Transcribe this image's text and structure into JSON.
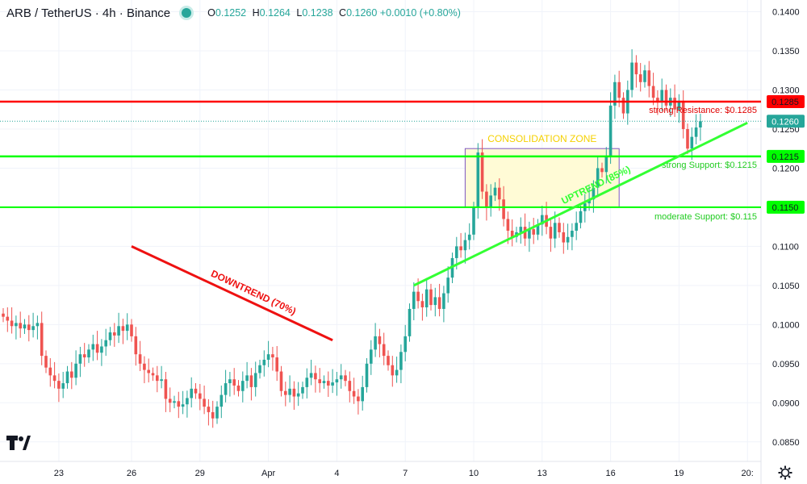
{
  "header": {
    "symbol": "ARB / TetherUS · 4h · Binance",
    "ohlc": [
      {
        "k": "O",
        "v": "0.1252"
      },
      {
        "k": "H",
        "v": "0.1264"
      },
      {
        "k": "L",
        "v": "0.1238"
      },
      {
        "k": "C",
        "v": "0.1260"
      },
      {
        "k": "",
        "v": "+0.0010 (+0.80%)"
      }
    ]
  },
  "colors": {
    "up": "#26a69a",
    "down": "#ef5350",
    "resistance": "#ff0000",
    "support": "#00ff00",
    "uptrend": "#33ff33",
    "downtrend": "#ee1111",
    "zone_fill": "#fffbd6",
    "zone_border": "#7e57c2",
    "price_tag": "#26a69a"
  },
  "chart_data": {
    "type": "candlestick",
    "title": "",
    "xlabel": "",
    "ylabel": "",
    "ylim": [
      0.0825,
      0.1415
    ],
    "y_ticks": [
      "0.0850",
      "0.0900",
      "0.0950",
      "0.1000",
      "0.1050",
      "0.1100",
      "0.1150",
      "0.1200",
      "0.1250",
      "0.1300",
      "0.1350",
      "0.1400"
    ],
    "y_tick_values": [
      0.085,
      0.09,
      0.095,
      0.1,
      0.105,
      0.11,
      0.115,
      0.12,
      0.125,
      0.13,
      0.135,
      0.14
    ],
    "x_ticks": [
      "23",
      "26",
      "29",
      "Apr",
      "4",
      "7",
      "10",
      "13",
      "16",
      "19",
      "20"
    ],
    "x_tick_index": [
      13,
      30,
      46,
      62,
      78,
      94,
      110,
      126,
      142,
      158,
      174
    ],
    "grid": true,
    "closes": [
      0.101,
      0.1005,
      0.0998,
      0.1002,
      0.0995,
      0.1,
      0.0993,
      0.0998,
      0.1002,
      0.096,
      0.0945,
      0.0935,
      0.0928,
      0.0918,
      0.0925,
      0.094,
      0.0932,
      0.095,
      0.0962,
      0.0958,
      0.0968,
      0.0975,
      0.0964,
      0.0972,
      0.098,
      0.099,
      0.0986,
      0.0998,
      0.0992,
      0.1,
      0.0985,
      0.0962,
      0.095,
      0.0942,
      0.0938,
      0.0935,
      0.0928,
      0.093,
      0.0905,
      0.09,
      0.0902,
      0.0895,
      0.0898,
      0.0906,
      0.0918,
      0.0912,
      0.0905,
      0.0895,
      0.0888,
      0.088,
      0.0895,
      0.091,
      0.0925,
      0.093,
      0.0922,
      0.0915,
      0.0928,
      0.0935,
      0.092,
      0.0938,
      0.0948,
      0.0955,
      0.0962,
      0.0958,
      0.094,
      0.0915,
      0.091,
      0.0918,
      0.0908,
      0.0912,
      0.092,
      0.0932,
      0.0938,
      0.093,
      0.0925,
      0.0928,
      0.0922,
      0.0926,
      0.093,
      0.0935,
      0.0928,
      0.0915,
      0.0908,
      0.0902,
      0.092,
      0.095,
      0.0968,
      0.0985,
      0.0975,
      0.096,
      0.0948,
      0.0935,
      0.0942,
      0.0965,
      0.0985,
      0.102,
      0.1042,
      0.103,
      0.1022,
      0.1045,
      0.1025,
      0.1035,
      0.102,
      0.104,
      0.106,
      0.1085,
      0.11,
      0.1095,
      0.1108,
      0.1115,
      0.115,
      0.122,
      0.117,
      0.115,
      0.1165,
      0.1175,
      0.116,
      0.1135,
      0.112,
      0.1112,
      0.1118,
      0.1125,
      0.111,
      0.1122,
      0.1115,
      0.1128,
      0.114,
      0.1125,
      0.111,
      0.113,
      0.1118,
      0.1105,
      0.1112,
      0.112,
      0.113,
      0.1145,
      0.1155,
      0.116,
      0.1175,
      0.12,
      0.1195,
      0.1215,
      0.128,
      0.131,
      0.129,
      0.127,
      0.13,
      0.1335,
      0.132,
      0.131,
      0.1325,
      0.1305,
      0.129,
      0.1285,
      0.13,
      0.128,
      0.129,
      0.1275,
      0.1285,
      0.125,
      0.1225,
      0.124,
      0.1252,
      0.126
    ],
    "lines": [
      {
        "name": "resistance",
        "price": 0.1285,
        "label": "strong Resistance: $0.1285",
        "tag": "0.1285"
      },
      {
        "name": "current",
        "price": 0.126,
        "tag": "0.1260"
      },
      {
        "name": "strong-support",
        "price": 0.1215,
        "label": "strong Support: $0.1215",
        "tag": "0.1215"
      },
      {
        "name": "moderate-support",
        "price": 0.115,
        "label": "moderate Support: $0.115",
        "tag": "0.1150"
      }
    ],
    "zone": {
      "label": "CONSOLIDATION ZONE",
      "from_index": 108,
      "to_index": 144,
      "top": 0.1225,
      "bottom": 0.115
    },
    "trendlines": [
      {
        "name": "downtrend",
        "label": "DOWNTREND (70%)",
        "from": [
          30,
          0.11
        ],
        "to": [
          77,
          0.098
        ]
      },
      {
        "name": "uptrend",
        "label": "UPTREND (85%)",
        "from": [
          96,
          0.105
        ],
        "to": [
          174,
          0.1258
        ]
      }
    ]
  }
}
